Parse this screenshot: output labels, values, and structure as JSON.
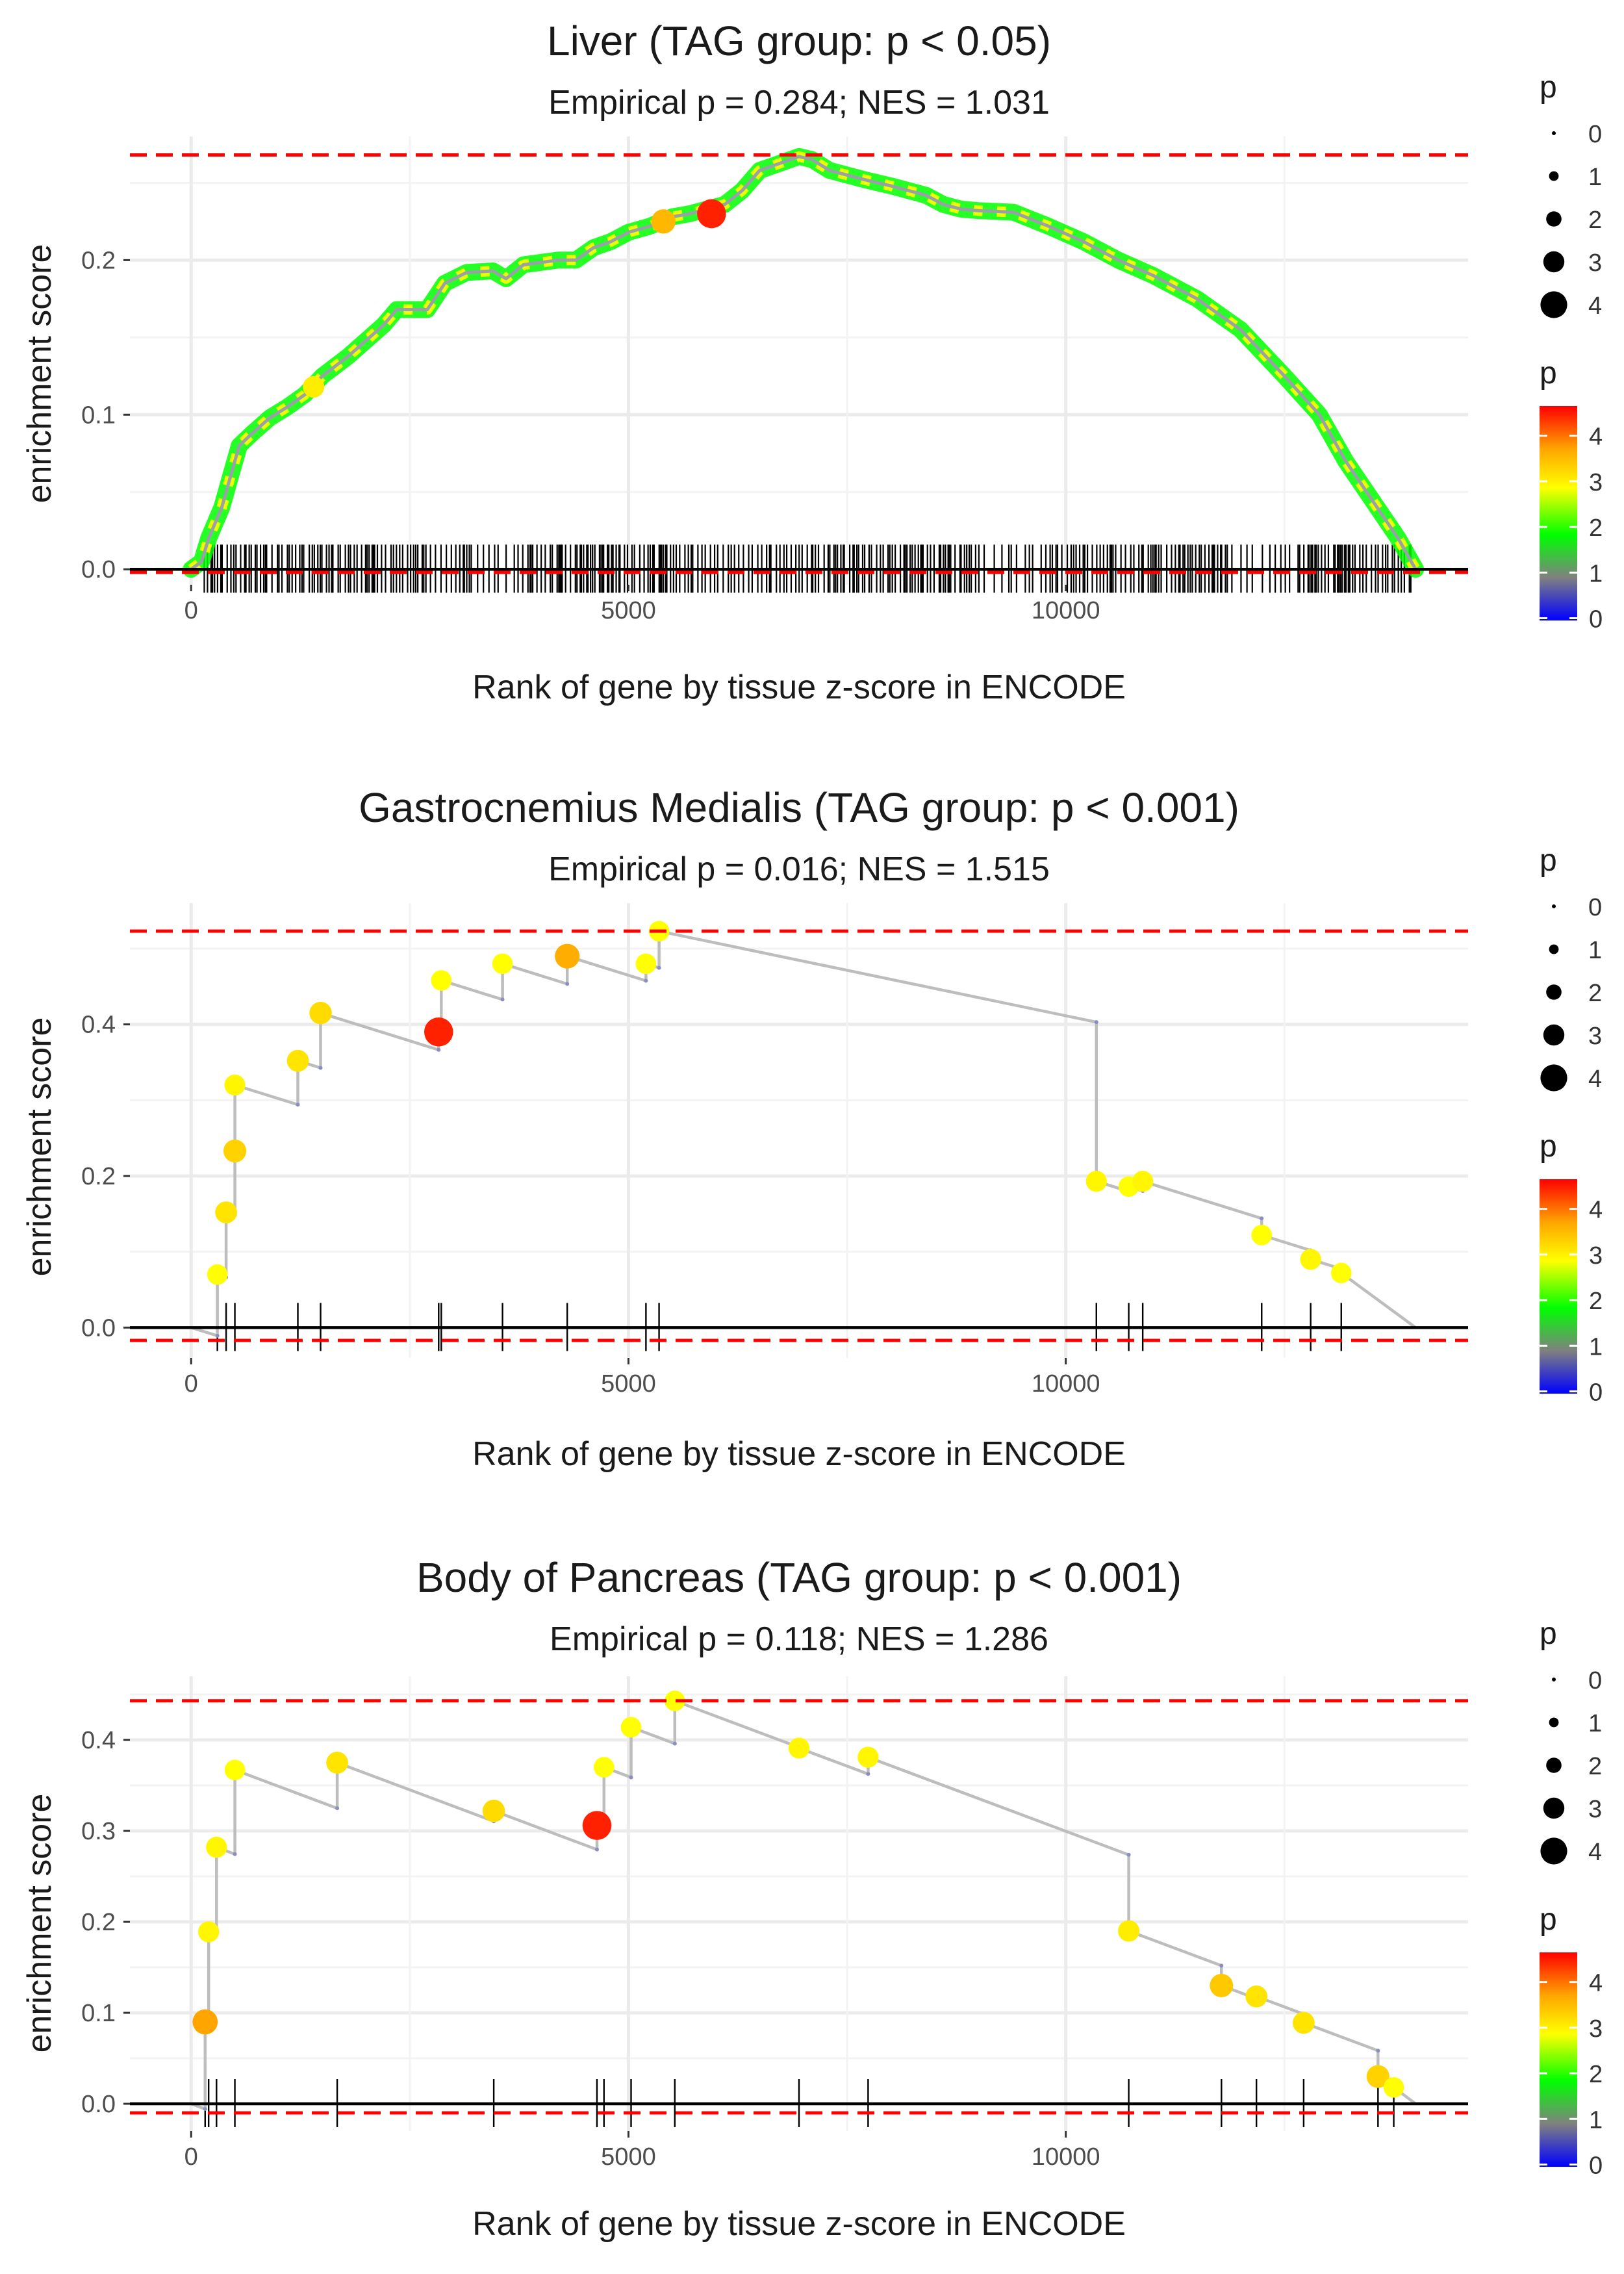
{
  "chart_data": [
    {
      "type": "scatter",
      "subtype": "gsea-enrichment-plot",
      "title": "Liver (TAG group: p < 0.05)",
      "subtitle": "Empirical p = 0.284; NES = 1.031",
      "xlabel": "Rank of gene by tissue z-score in ENCODE",
      "ylabel": "enrichment score",
      "xlim": [
        -700,
        14600
      ],
      "ylim": [
        -0.01,
        0.28
      ],
      "xticks": [
        0,
        5000,
        10000
      ],
      "xtick_labels": [
        "0",
        "5000",
        "10000"
      ],
      "yticks": [
        0.0,
        0.1,
        0.2
      ],
      "ytick_labels": [
        "0.0",
        "0.1",
        "0.2"
      ],
      "max_es": 0.268,
      "min_es": -0.002,
      "dense": true,
      "curve": [
        [
          0,
          0
        ],
        [
          120,
          0.005
        ],
        [
          200,
          0.02
        ],
        [
          350,
          0.04
        ],
        [
          450,
          0.06
        ],
        [
          550,
          0.08
        ],
        [
          700,
          0.088
        ],
        [
          900,
          0.098
        ],
        [
          1100,
          0.105
        ],
        [
          1300,
          0.113
        ],
        [
          1500,
          0.125
        ],
        [
          1800,
          0.138
        ],
        [
          2000,
          0.148
        ],
        [
          2200,
          0.158
        ],
        [
          2350,
          0.168
        ],
        [
          2700,
          0.168
        ],
        [
          2900,
          0.185
        ],
        [
          3150,
          0.192
        ],
        [
          3450,
          0.193
        ],
        [
          3600,
          0.188
        ],
        [
          3800,
          0.197
        ],
        [
          4200,
          0.2
        ],
        [
          4400,
          0.2
        ],
        [
          4600,
          0.208
        ],
        [
          4800,
          0.212
        ],
        [
          5000,
          0.218
        ],
        [
          5250,
          0.222
        ],
        [
          5500,
          0.228
        ],
        [
          5700,
          0.23
        ],
        [
          5900,
          0.233
        ],
        [
          6100,
          0.236
        ],
        [
          6300,
          0.245
        ],
        [
          6500,
          0.258
        ],
        [
          6800,
          0.264
        ],
        [
          6950,
          0.267
        ],
        [
          7100,
          0.265
        ],
        [
          7300,
          0.258
        ],
        [
          7700,
          0.252
        ],
        [
          8000,
          0.248
        ],
        [
          8400,
          0.242
        ],
        [
          8600,
          0.236
        ],
        [
          8800,
          0.233
        ],
        [
          9000,
          0.232
        ],
        [
          9400,
          0.231
        ],
        [
          9800,
          0.222
        ],
        [
          10200,
          0.212
        ],
        [
          10600,
          0.2
        ],
        [
          11000,
          0.19
        ],
        [
          11500,
          0.175
        ],
        [
          12000,
          0.155
        ],
        [
          12500,
          0.125
        ],
        [
          12900,
          0.1
        ],
        [
          13200,
          0.07
        ],
        [
          13500,
          0.045
        ],
        [
          13800,
          0.02
        ],
        [
          14000,
          0.0
        ]
      ],
      "highlight_points": [
        {
          "x": 1400,
          "y": 0.118,
          "p": 3.2
        },
        {
          "x": 5400,
          "y": 0.225,
          "p": 3.8
        },
        {
          "x": 5950,
          "y": 0.23,
          "p": 4.8
        }
      ],
      "ticks": []
    },
    {
      "type": "scatter",
      "subtype": "gsea-enrichment-plot",
      "title": "Gastrocnemius Medialis (TAG group: p < 0.001)",
      "subtitle": "Empirical p = 0.016; NES = 1.515",
      "xlabel": "Rank of gene by tissue z-score in ENCODE",
      "ylabel": "enrichment score",
      "xlim": [
        -700,
        14600
      ],
      "ylim": [
        -0.04,
        0.56
      ],
      "xticks": [
        0,
        5000,
        10000
      ],
      "xtick_labels": [
        "0",
        "5000",
        "10000"
      ],
      "yticks": [
        0.0,
        0.2,
        0.4
      ],
      "ytick_labels": [
        "0.0",
        "0.2",
        "0.4"
      ],
      "max_es": 0.523,
      "min_es": -0.017,
      "ticks": [
        300,
        400,
        500,
        1220,
        1480,
        2830,
        2860,
        3560,
        4300,
        5200,
        5350,
        10350,
        10720,
        10880,
        12240,
        12800,
        13150
      ],
      "points": [
        {
          "x": 300,
          "y": 0.07,
          "p": 3.0
        },
        {
          "x": 400,
          "y": 0.152,
          "p": 3.3
        },
        {
          "x": 500,
          "y": 0.233,
          "p": 3.5
        },
        {
          "x": 500,
          "y": 0.32,
          "p": 3.1
        },
        {
          "x": 1220,
          "y": 0.352,
          "p": 3.3
        },
        {
          "x": 1480,
          "y": 0.415,
          "p": 3.4
        },
        {
          "x": 2830,
          "y": 0.39,
          "p": 4.8
        },
        {
          "x": 2860,
          "y": 0.458,
          "p": 3.0
        },
        {
          "x": 3560,
          "y": 0.48,
          "p": 3.0
        },
        {
          "x": 4300,
          "y": 0.49,
          "p": 3.9
        },
        {
          "x": 5200,
          "y": 0.48,
          "p": 3.0
        },
        {
          "x": 5350,
          "y": 0.523,
          "p": 3.0
        },
        {
          "x": 10350,
          "y": 0.193,
          "p": 3.1
        },
        {
          "x": 10720,
          "y": 0.186,
          "p": 3.0
        },
        {
          "x": 10880,
          "y": 0.193,
          "p": 3.1
        },
        {
          "x": 12240,
          "y": 0.122,
          "p": 3.0
        },
        {
          "x": 12800,
          "y": 0.09,
          "p": 3.1
        },
        {
          "x": 13150,
          "y": 0.072,
          "p": 3.0
        }
      ],
      "end_x": 14000
    },
    {
      "type": "scatter",
      "subtype": "gsea-enrichment-plot",
      "title": "Body of Pancreas (TAG group: p < 0.001)",
      "subtitle": "Empirical p = 0.118; NES = 1.286",
      "xlabel": "Rank of gene by tissue z-score in ENCODE",
      "ylabel": "enrichment score",
      "xlim": [
        -700,
        14600
      ],
      "ylim": [
        -0.03,
        0.47
      ],
      "xticks": [
        0,
        5000,
        10000
      ],
      "xtick_labels": [
        "0",
        "5000",
        "10000"
      ],
      "yticks": [
        0.0,
        0.1,
        0.2,
        0.3,
        0.4
      ],
      "ytick_labels": [
        "0.0",
        "0.1",
        "0.2",
        "0.3",
        "0.4"
      ],
      "max_es": 0.443,
      "min_es": -0.01,
      "ticks": [
        160,
        200,
        290,
        500,
        1670,
        3460,
        4640,
        4720,
        5030,
        5530,
        6950,
        7740,
        10720,
        11780,
        12180,
        12720,
        13570,
        13750
      ],
      "points": [
        {
          "x": 160,
          "y": 0.09,
          "p": 4.0
        },
        {
          "x": 200,
          "y": 0.189,
          "p": 3.1
        },
        {
          "x": 290,
          "y": 0.282,
          "p": 3.1
        },
        {
          "x": 500,
          "y": 0.367,
          "p": 3.0
        },
        {
          "x": 1670,
          "y": 0.375,
          "p": 3.3
        },
        {
          "x": 3460,
          "y": 0.322,
          "p": 3.4
        },
        {
          "x": 4640,
          "y": 0.306,
          "p": 4.8
        },
        {
          "x": 4720,
          "y": 0.37,
          "p": 3.0
        },
        {
          "x": 5030,
          "y": 0.414,
          "p": 3.0
        },
        {
          "x": 5530,
          "y": 0.443,
          "p": 3.0
        },
        {
          "x": 6950,
          "y": 0.391,
          "p": 3.1
        },
        {
          "x": 7740,
          "y": 0.381,
          "p": 3.1
        },
        {
          "x": 10720,
          "y": 0.19,
          "p": 3.2
        },
        {
          "x": 11780,
          "y": 0.13,
          "p": 3.6
        },
        {
          "x": 12180,
          "y": 0.118,
          "p": 3.3
        },
        {
          "x": 12720,
          "y": 0.089,
          "p": 3.3
        },
        {
          "x": 13570,
          "y": 0.03,
          "p": 3.5
        },
        {
          "x": 13750,
          "y": 0.018,
          "p": 3.0
        }
      ],
      "end_x": 14000
    }
  ],
  "legend": {
    "size_title": "p",
    "size_labels": [
      "0",
      "1",
      "2",
      "3",
      "4"
    ],
    "color_title": "p",
    "color_labels": [
      "0",
      "1",
      "2",
      "3",
      "4"
    ],
    "color_stops": [
      "#0000ff",
      "#808080",
      "#00ff00",
      "#ffff00",
      "#ffa500",
      "#ff0000"
    ]
  }
}
